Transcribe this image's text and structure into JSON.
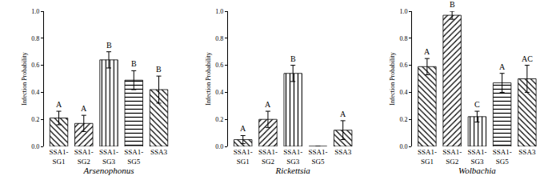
{
  "chart_data": [
    {
      "type": "bar",
      "x_label": "Arsenophonus",
      "y_label": "Infection Probability",
      "categories": [
        "SSA1-\nSG1",
        "SSA1-\nSG2",
        "SSA1-\nSG3",
        "SSA1-\nSG5",
        "SSA3"
      ],
      "values": [
        0.21,
        0.17,
        0.64,
        0.49,
        0.42
      ],
      "errors": [
        0.05,
        0.06,
        0.06,
        0.07,
        0.1
      ],
      "annotations": [
        "A",
        "A",
        "B",
        "B",
        "B"
      ],
      "color": "#ffffff",
      "ylim": [
        0,
        1
      ],
      "yticks": [
        {
          "value": 0,
          "label": "0.0"
        },
        {
          "value": 0.2,
          "label": "0.2"
        },
        {
          "value": 0.4,
          "label": "0.4"
        },
        {
          "value": 0.6,
          "label": "0.6"
        },
        {
          "value": 0.8,
          "label": "0.8"
        },
        {
          "value": 1,
          "label": "1.0"
        }
      ]
    },
    {
      "type": "bar",
      "x_label": "Rickettsia",
      "y_label": "Infection Probability",
      "categories": [
        "SSA1-\nSG1",
        "SSA1-\nSG2",
        "SSA1-\nSG3",
        "SSA1-\nSG5",
        "SSA3"
      ],
      "values": [
        0.05,
        0.2,
        0.54,
        0,
        0.12
      ],
      "errors": [
        0.03,
        0.06,
        0.06,
        null,
        0.07
      ],
      "annotations": [
        "A",
        "A",
        "B",
        null,
        "A"
      ],
      "color": "#ffffff",
      "ylim": [
        0,
        1
      ],
      "yticks": [
        {
          "value": 0,
          "label": "0.0"
        },
        {
          "value": 0.2,
          "label": "0.2"
        },
        {
          "value": 0.4,
          "label": "0.4"
        },
        {
          "value": 0.6,
          "label": "0.6"
        },
        {
          "value": 0.8,
          "label": "0.8"
        },
        {
          "value": 1,
          "label": "1.0"
        }
      ]
    },
    {
      "type": "bar",
      "x_label": "Wolbachia",
      "y_label": "Infection Probability",
      "categories": [
        "SSA1-\nSG1",
        "SSA1-\nSG2",
        "SSA1-\nSG3",
        "SSA1-\nSG5",
        "SSA3"
      ],
      "values": [
        0.59,
        0.97,
        0.22,
        0.47,
        0.5
      ],
      "errors": [
        0.06,
        0.03,
        0.04,
        0.07,
        0.1
      ],
      "annotations": [
        "A",
        "B",
        "C",
        "A",
        "AC"
      ],
      "color": "#ffffff",
      "ylim": [
        0,
        1
      ],
      "yticks": [
        {
          "value": 0,
          "label": "0.0"
        },
        {
          "value": 0.2,
          "label": "0.2"
        },
        {
          "value": 0.4,
          "label": "0.4"
        },
        {
          "value": 0.6,
          "label": "0.6"
        },
        {
          "value": 0.8,
          "label": "0.8"
        },
        {
          "value": 1,
          "label": "1.0"
        }
      ]
    }
  ]
}
